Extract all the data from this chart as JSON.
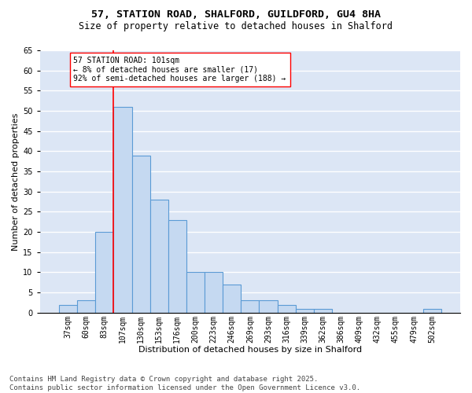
{
  "title_line1": "57, STATION ROAD, SHALFORD, GUILDFORD, GU4 8HA",
  "title_line2": "Size of property relative to detached houses in Shalford",
  "xlabel": "Distribution of detached houses by size in Shalford",
  "ylabel": "Number of detached properties",
  "categories": [
    "37sqm",
    "60sqm",
    "83sqm",
    "107sqm",
    "130sqm",
    "153sqm",
    "176sqm",
    "200sqm",
    "223sqm",
    "246sqm",
    "269sqm",
    "293sqm",
    "316sqm",
    "339sqm",
    "362sqm",
    "386sqm",
    "409sqm",
    "432sqm",
    "455sqm",
    "479sqm",
    "502sqm"
  ],
  "values": [
    2,
    3,
    20,
    51,
    39,
    28,
    23,
    10,
    10,
    7,
    3,
    3,
    2,
    1,
    1,
    0,
    0,
    0,
    0,
    0,
    1
  ],
  "bar_color": "#c5d9f1",
  "bar_edge_color": "#5b9bd5",
  "bar_edge_width": 0.8,
  "redline_index": 3,
  "annotation_text": "57 STATION ROAD: 101sqm\n← 8% of detached houses are smaller (17)\n92% of semi-detached houses are larger (188) →",
  "ylim": [
    0,
    65
  ],
  "yticks": [
    0,
    5,
    10,
    15,
    20,
    25,
    30,
    35,
    40,
    45,
    50,
    55,
    60,
    65
  ],
  "background_color": "#dce6f5",
  "grid_color": "#ffffff",
  "footer_text": "Contains HM Land Registry data © Crown copyright and database right 2025.\nContains public sector information licensed under the Open Government Licence v3.0.",
  "title_fontsize": 9.5,
  "subtitle_fontsize": 8.5,
  "axis_label_fontsize": 8,
  "tick_fontsize": 7,
  "annotation_fontsize": 7,
  "footer_fontsize": 6.5
}
